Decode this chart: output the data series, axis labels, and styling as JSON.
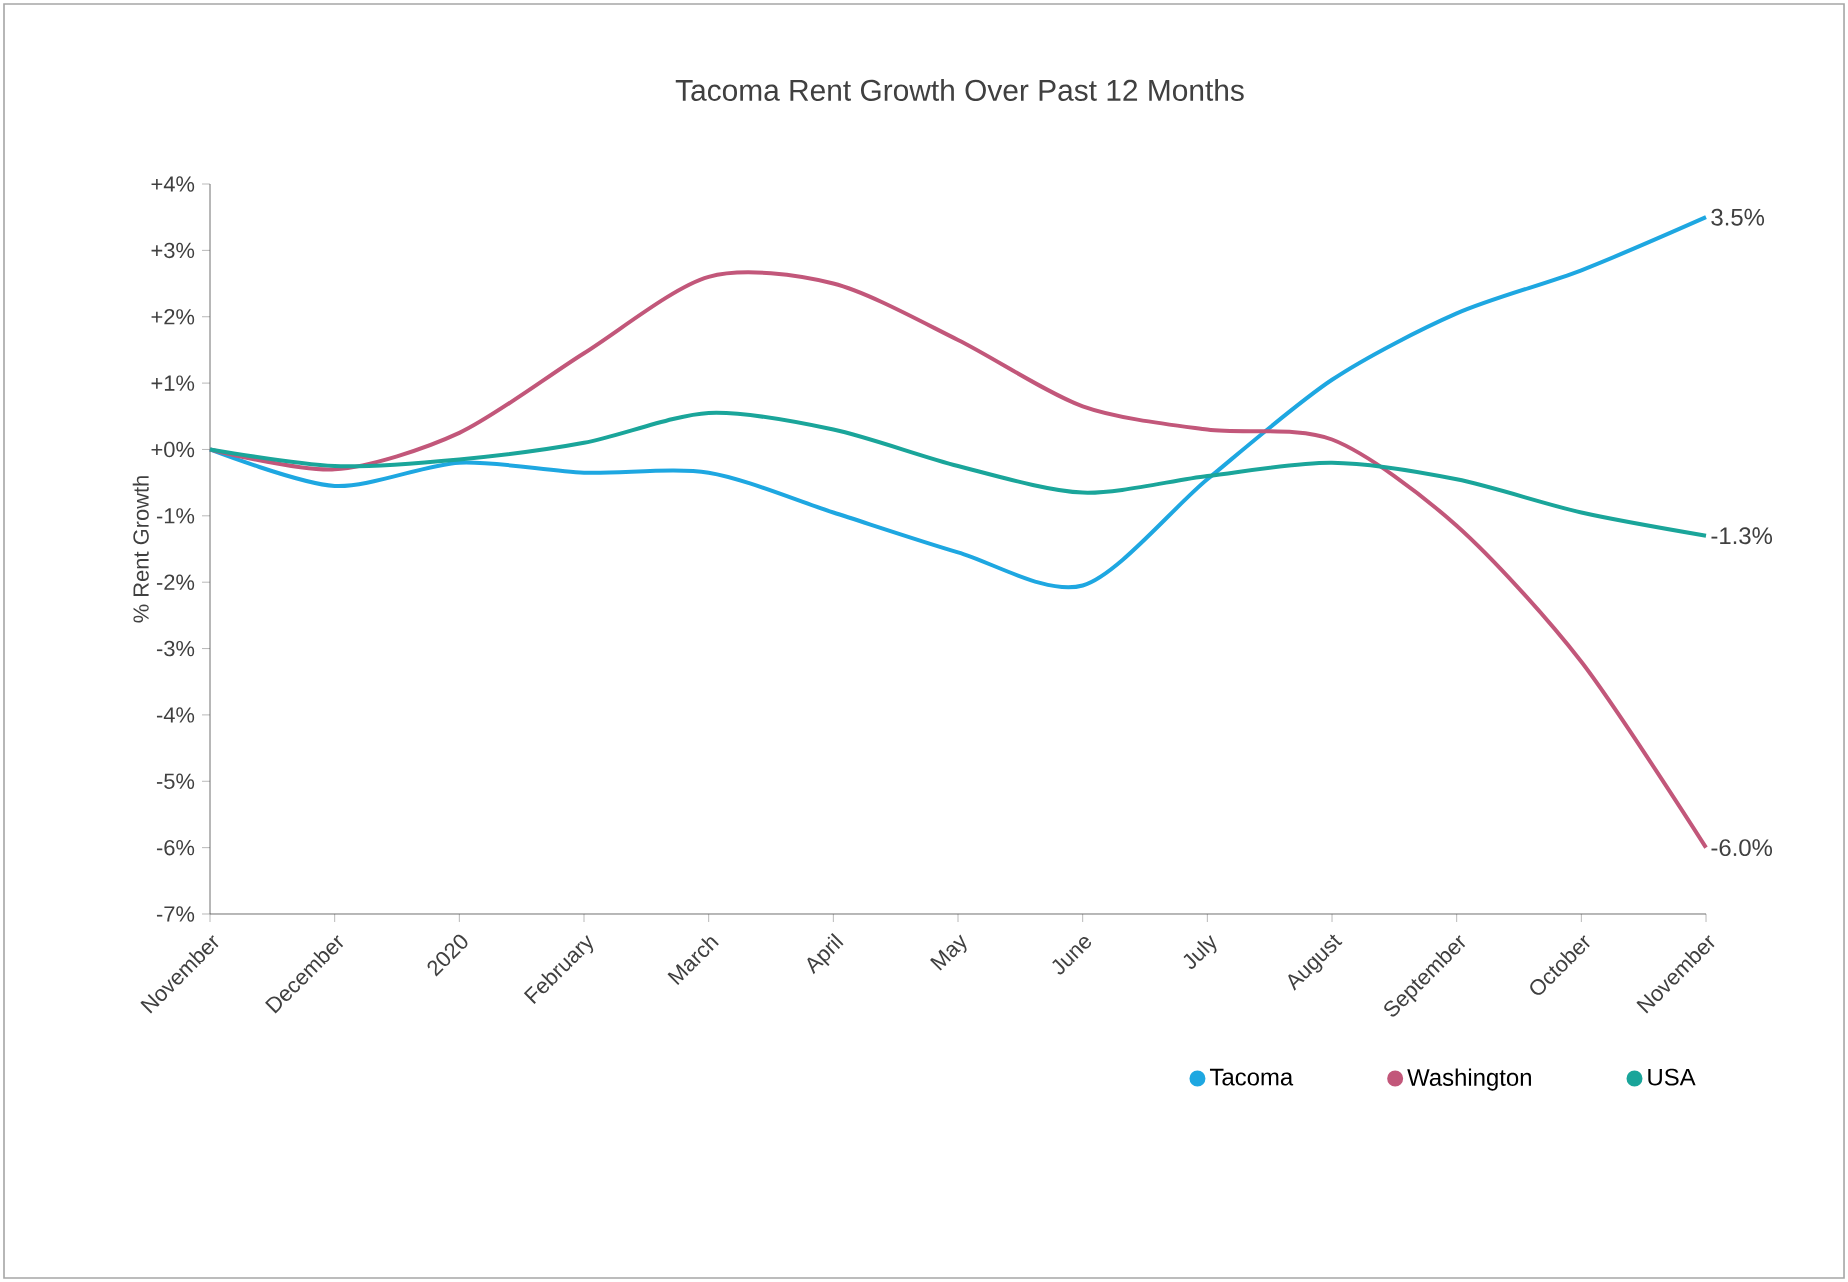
{
  "chart_data": {
    "type": "line",
    "title": "Tacoma Rent Growth Over Past 12 Months",
    "ylabel": "% Rent Growth",
    "categories": [
      "November",
      "December",
      "2020",
      "February",
      "March",
      "April",
      "May",
      "June",
      "July",
      "August",
      "September",
      "October",
      "November"
    ],
    "series": [
      {
        "name": "Tacoma",
        "color": "#1ea7e1",
        "values": [
          0,
          -0.55,
          -0.2,
          -0.35,
          -0.35,
          -0.95,
          -1.55,
          -2.05,
          -0.45,
          1.05,
          2.05,
          2.7,
          3.5
        ],
        "value_labels": [
          null,
          null,
          null,
          null,
          null,
          null,
          null,
          null,
          null,
          null,
          null,
          null,
          "3.5%"
        ]
      },
      {
        "name": "Washington",
        "color": "#c2577a",
        "values": [
          0,
          -0.3,
          0.25,
          1.45,
          2.6,
          2.5,
          1.65,
          0.65,
          0.3,
          0.15,
          -1.15,
          -3.2,
          -6.0
        ],
        "value_labels": [
          null,
          null,
          null,
          null,
          null,
          null,
          null,
          null,
          null,
          null,
          null,
          null,
          "-6.0%"
        ]
      },
      {
        "name": "USA",
        "color": "#1aa59a",
        "values": [
          0,
          -0.25,
          -0.15,
          0.1,
          0.55,
          0.3,
          -0.25,
          -0.65,
          -0.4,
          -0.2,
          -0.45,
          -0.95,
          -1.3
        ],
        "value_labels": [
          null,
          null,
          null,
          null,
          null,
          null,
          null,
          null,
          null,
          null,
          null,
          null,
          "-1.3%"
        ]
      }
    ],
    "ylim": [
      -7,
      4
    ],
    "yticks": [
      {
        "value": 4,
        "label": "+4%"
      },
      {
        "value": 3,
        "label": "+3%"
      },
      {
        "value": 2,
        "label": "+2%"
      },
      {
        "value": 1,
        "label": "+1%"
      },
      {
        "value": 0,
        "label": "+0%"
      },
      {
        "value": -1,
        "label": "-1%"
      },
      {
        "value": -2,
        "label": "-2%"
      },
      {
        "value": -3,
        "label": "-3%"
      },
      {
        "value": -4,
        "label": "-4%"
      },
      {
        "value": -5,
        "label": "-5%"
      },
      {
        "value": -6,
        "label": "-6%"
      },
      {
        "value": -7,
        "label": "-7%"
      }
    ],
    "legend": "bottom right",
    "grid": false
  }
}
